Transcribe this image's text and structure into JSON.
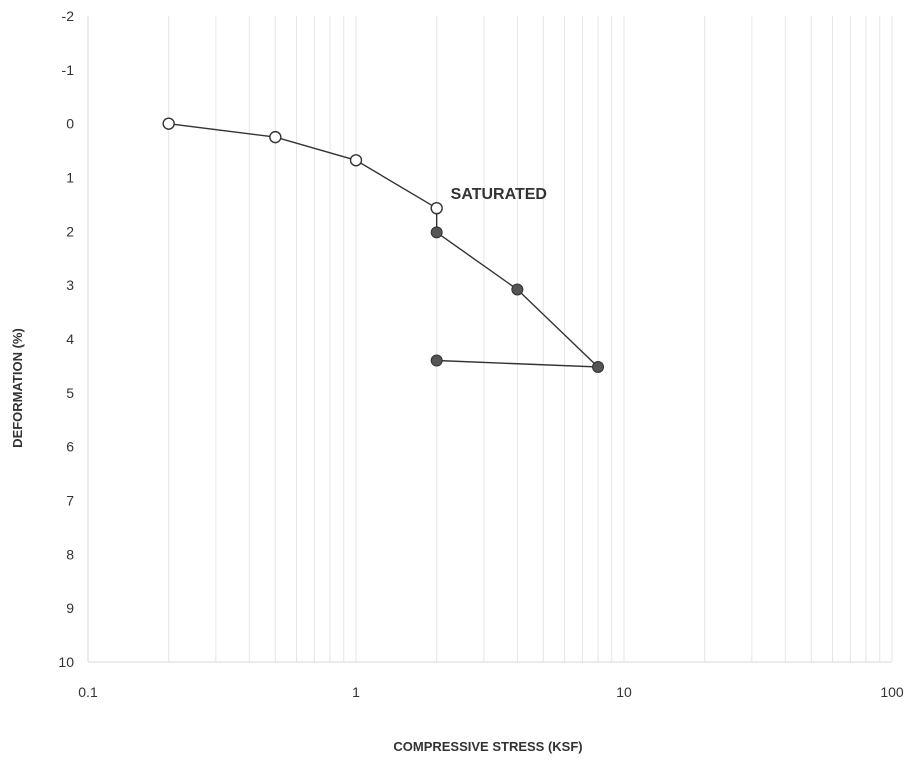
{
  "chart_data": {
    "type": "scatter",
    "xscale": "log",
    "xlim": [
      0.1,
      100
    ],
    "ylim": [
      -2,
      10
    ],
    "y_inverted": true,
    "xticks": [
      "0.1",
      "1",
      "10",
      "100"
    ],
    "yticks": [
      "-2",
      "-1",
      "0",
      "1",
      "2",
      "3",
      "4",
      "5",
      "6",
      "7",
      "8",
      "9",
      "10"
    ],
    "xlabel": "COMPRESSIVE STRESS (KSF)",
    "ylabel": "DEFORMATION (%)",
    "grid": "vertical",
    "legend": "none",
    "annotation": {
      "text": "SATURATED",
      "x": 2.0,
      "y": 1.55
    },
    "series": [
      {
        "marker": "open-circle",
        "color": "#333333",
        "x": [
          0.2,
          0.5,
          1.0,
          2.0
        ],
        "y": [
          0.0,
          0.25,
          0.68,
          1.57
        ]
      },
      {
        "marker": "filled-circle",
        "color": "#555555",
        "x": [
          2.0,
          4.0,
          8.0,
          2.0
        ],
        "y": [
          2.02,
          3.08,
          4.52,
          4.4
        ]
      }
    ],
    "connector": {
      "x": [
        2.0,
        2.0
      ],
      "y": [
        1.57,
        2.02
      ]
    }
  }
}
